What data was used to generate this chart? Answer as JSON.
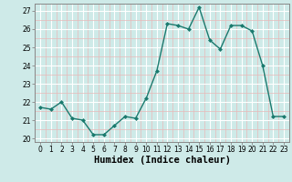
{
  "x": [
    0,
    1,
    2,
    3,
    4,
    5,
    6,
    7,
    8,
    9,
    10,
    11,
    12,
    13,
    14,
    15,
    16,
    17,
    18,
    19,
    20,
    21,
    22,
    23
  ],
  "y": [
    21.7,
    21.6,
    22.0,
    21.1,
    21.0,
    20.2,
    20.2,
    20.7,
    21.2,
    21.1,
    22.2,
    23.7,
    26.3,
    26.2,
    26.0,
    27.2,
    25.4,
    24.9,
    26.2,
    26.2,
    25.9,
    24.0,
    21.2,
    21.2
  ],
  "line_color": "#1a7a6e",
  "marker": "D",
  "marker_size": 2.0,
  "bg_color": "#ceeae8",
  "grid_color_major": "#ffffff",
  "grid_color_minor": "#e8b8b8",
  "xlabel": "Humidex (Indice chaleur)",
  "ylim": [
    19.8,
    27.4
  ],
  "xlim": [
    -0.5,
    23.5
  ],
  "yticks": [
    20,
    21,
    22,
    23,
    24,
    25,
    26,
    27
  ],
  "xticks": [
    0,
    1,
    2,
    3,
    4,
    5,
    6,
    7,
    8,
    9,
    10,
    11,
    12,
    13,
    14,
    15,
    16,
    17,
    18,
    19,
    20,
    21,
    22,
    23
  ],
  "tick_fontsize": 5.5,
  "xlabel_fontsize": 7.5,
  "spine_color": "#888888",
  "line_width": 1.0
}
